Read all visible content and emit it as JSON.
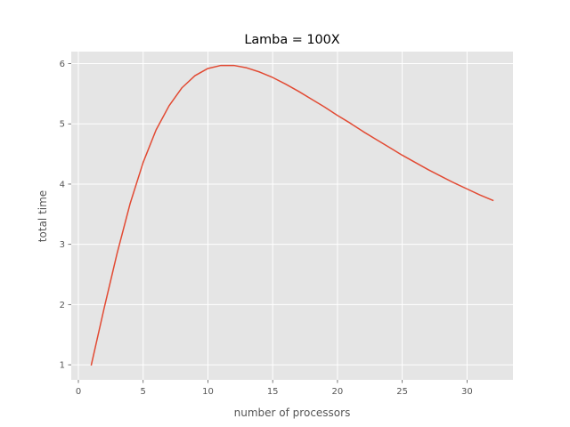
{
  "chart_data": {
    "type": "line",
    "title": "Lamba = 100X",
    "xlabel": "number of processors",
    "ylabel": "total time",
    "xlim": [
      -0.55,
      33.55
    ],
    "ylim": [
      0.75,
      6.2
    ],
    "xticks": [
      0,
      5,
      10,
      15,
      20,
      25,
      30
    ],
    "yticks": [
      1,
      2,
      3,
      4,
      5,
      6
    ],
    "grid": true,
    "legend": "none",
    "series": [
      {
        "color": "#E24A33",
        "x": [
          1,
          2,
          3,
          4,
          5,
          6,
          7,
          8,
          9,
          10,
          11,
          12,
          13,
          14,
          15,
          16,
          17,
          18,
          19,
          20,
          21,
          22,
          23,
          24,
          25,
          26,
          27,
          28,
          29,
          30,
          31,
          32
        ],
        "y": [
          1.0,
          1.95,
          2.86,
          3.68,
          4.36,
          4.9,
          5.3,
          5.6,
          5.8,
          5.92,
          5.97,
          5.97,
          5.93,
          5.86,
          5.77,
          5.66,
          5.54,
          5.41,
          5.28,
          5.14,
          5.01,
          4.87,
          4.74,
          4.61,
          4.48,
          4.36,
          4.24,
          4.13,
          4.02,
          3.92,
          3.82,
          3.73
        ]
      }
    ]
  },
  "colors": {
    "plot_background": "#E5E5E5",
    "grid": "#FFFFFF",
    "line": "#E24A33",
    "tick_text": "#555555"
  }
}
